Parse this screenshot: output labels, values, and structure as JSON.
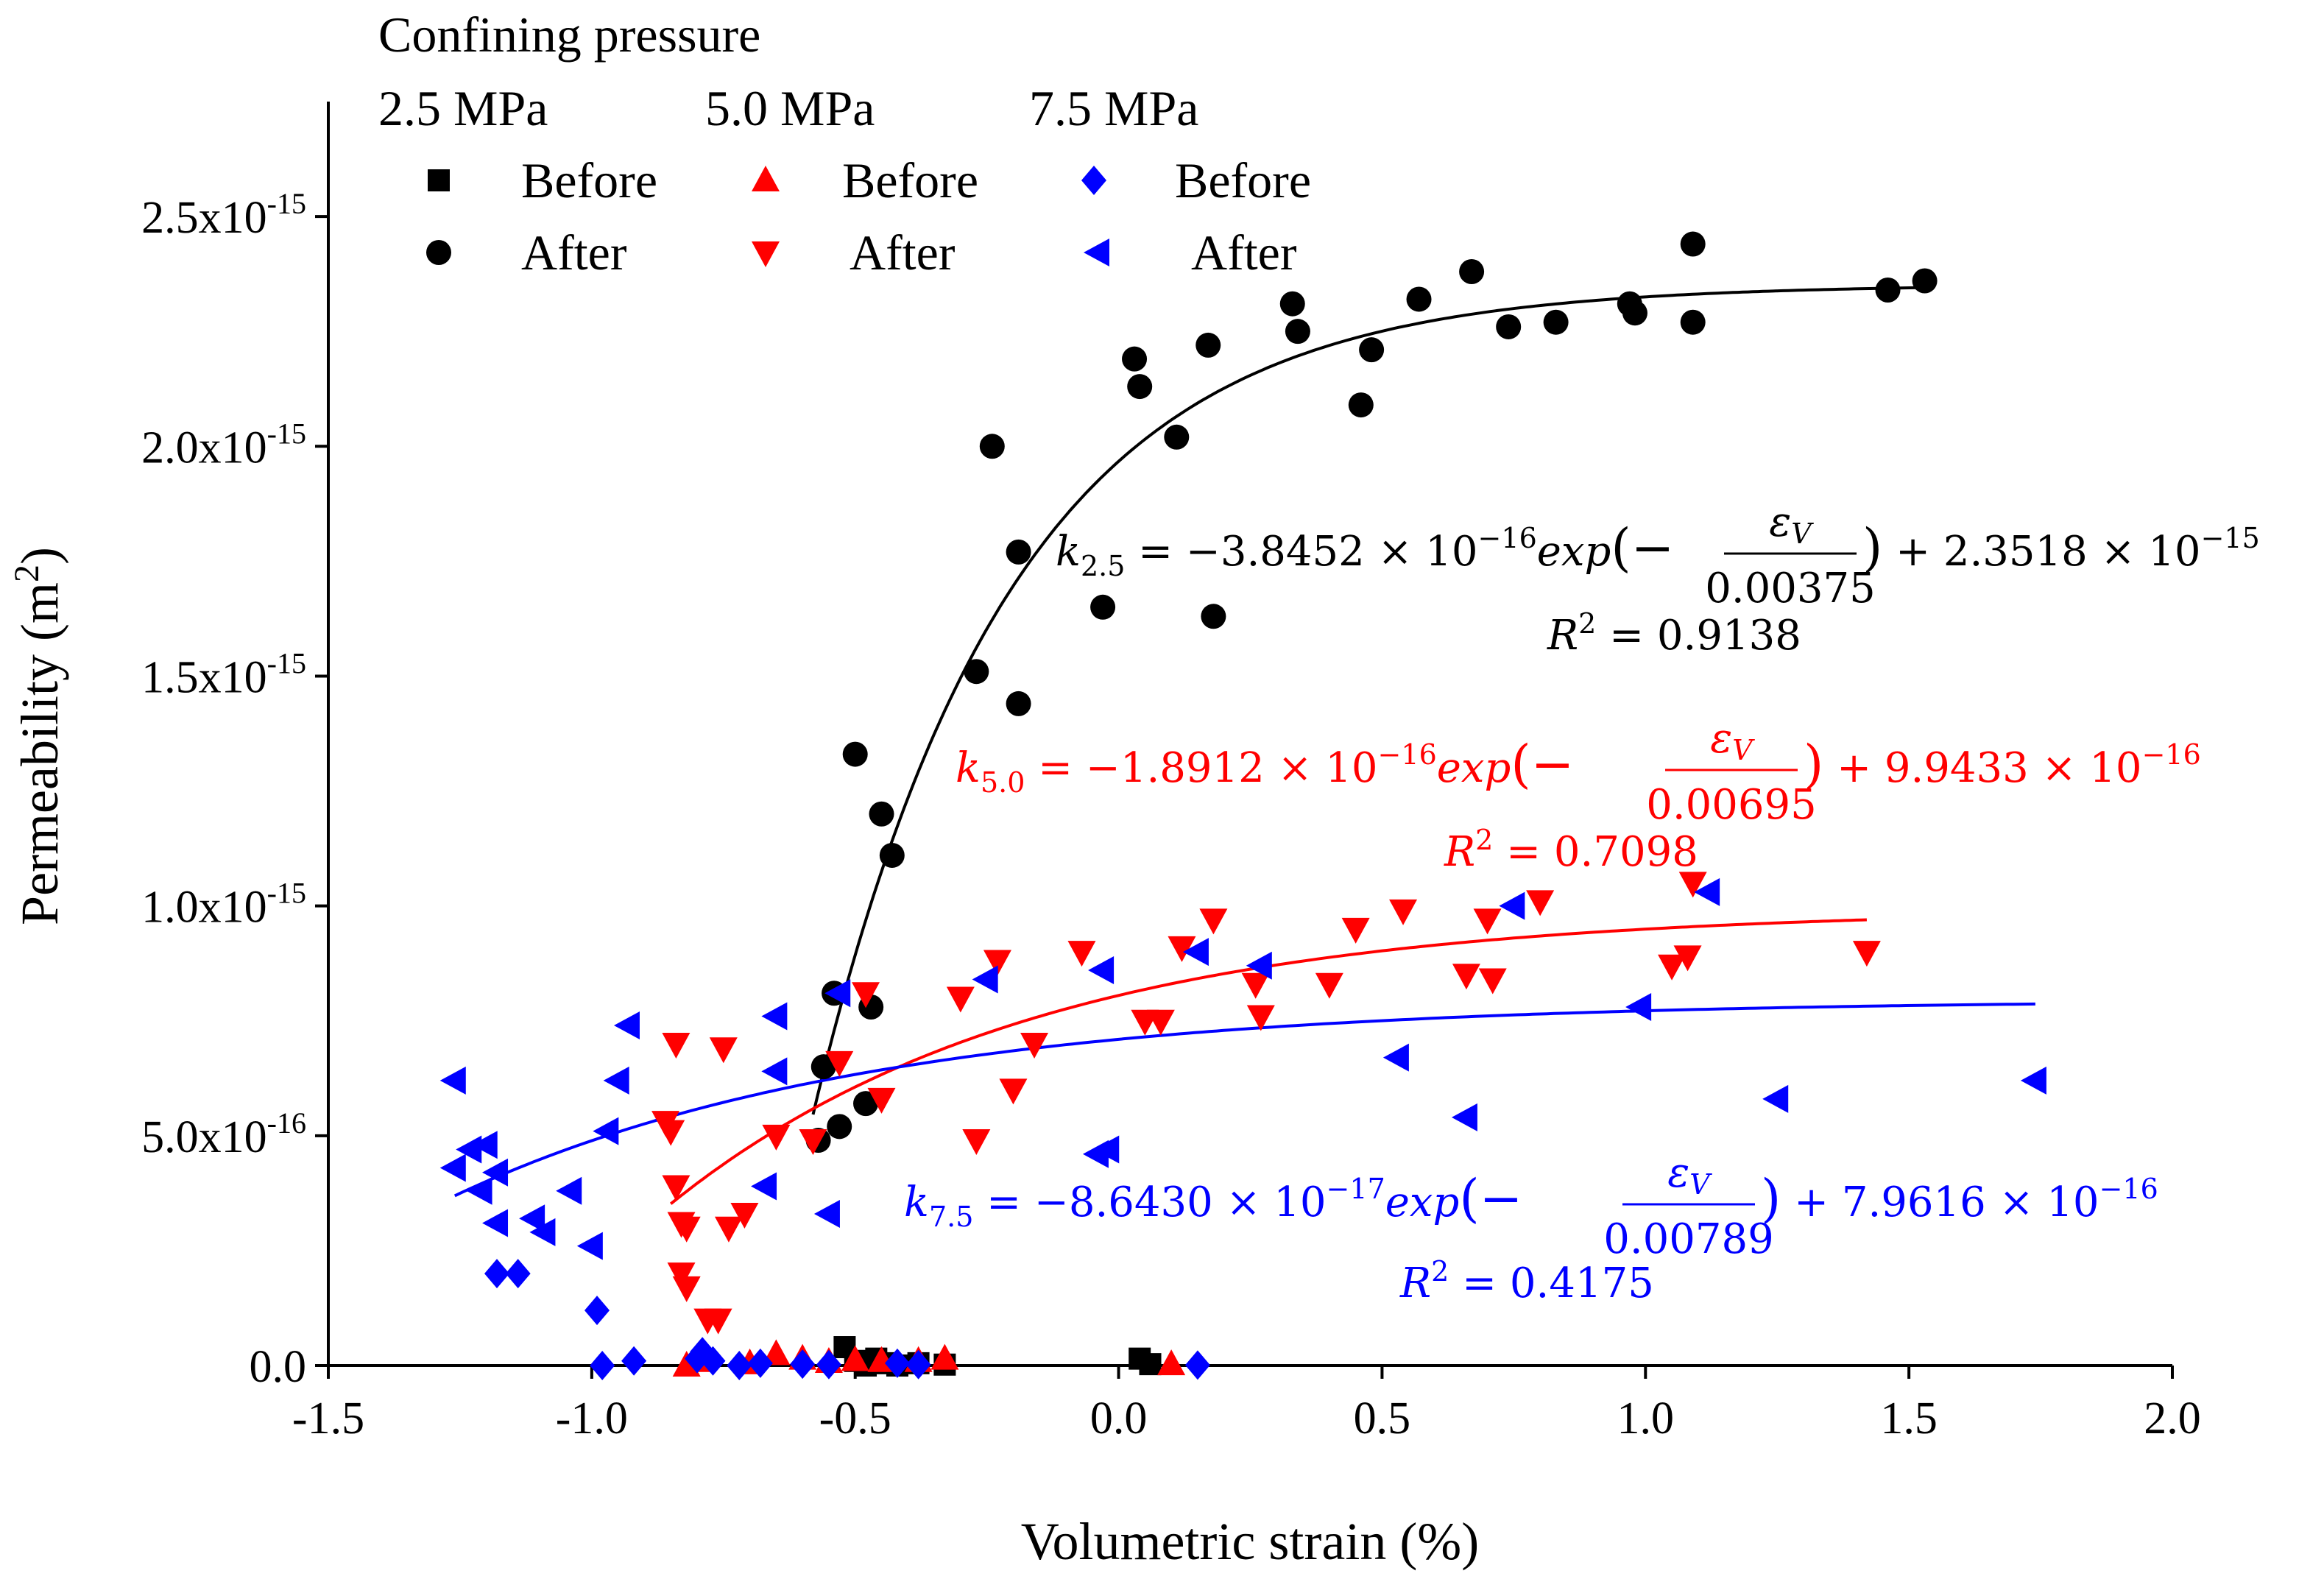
{
  "chart_data": {
    "type": "scatter",
    "title": "",
    "xlabel": "Volumetric strain (%)",
    "ylabel_main": "Permeability (m",
    "ylabel_sup": "2",
    "ylabel_close": ")",
    "xlim": [
      -1.5,
      2.0
    ],
    "ylim": [
      0,
      2.75e-15
    ],
    "grid": false,
    "x_ticks": [
      {
        "value": -1.5,
        "label": "-1.5"
      },
      {
        "value": -1.0,
        "label": "-1.0"
      },
      {
        "value": -0.5,
        "label": "-0.5"
      },
      {
        "value": 0.0,
        "label": "0.0"
      },
      {
        "value": 0.5,
        "label": "0.5"
      },
      {
        "value": 1.0,
        "label": "1.0"
      },
      {
        "value": 1.5,
        "label": "1.5"
      },
      {
        "value": 2.0,
        "label": "2.0"
      }
    ],
    "y_ticks": [
      {
        "value": 0,
        "base": "0.0",
        "exp": ""
      },
      {
        "value": 5e-16,
        "base": "5.0x10",
        "exp": "-16"
      },
      {
        "value": 1e-15,
        "base": "1.0x10",
        "exp": "-15"
      },
      {
        "value": 1.5e-15,
        "base": "1.5x10",
        "exp": "-15"
      },
      {
        "value": 2e-15,
        "base": "2.0x10",
        "exp": "-15"
      },
      {
        "value": 2.5e-15,
        "base": "2.5x10",
        "exp": "-15"
      }
    ],
    "legend": {
      "title": "Confining pressure",
      "placement": "top-left",
      "columns": [
        "2.5 MPa",
        "5.0 MPa",
        "7.5 MPa"
      ],
      "entries": [
        {
          "series": "2.5 MPa Before",
          "label": "Before"
        },
        {
          "series": "5.0 MPa Before",
          "label": "Before"
        },
        {
          "series": "7.5 MPa Before",
          "label": "Before"
        },
        {
          "series": "2.5 MPa After",
          "label": "After"
        },
        {
          "series": "5.0 MPa After",
          "label": "After"
        },
        {
          "series": "7.5 MPa After",
          "label": "After"
        }
      ]
    },
    "series": [
      {
        "name": "2.5 MPa Before",
        "marker": "square",
        "color": "#000000",
        "points": [
          [
            -0.52,
            4e-17
          ],
          [
            -0.5,
            1e-17
          ],
          [
            -0.48,
            0
          ],
          [
            -0.46,
            1.5e-17
          ],
          [
            -0.44,
            5e-18
          ],
          [
            -0.42,
            0
          ],
          [
            -0.38,
            5e-18
          ],
          [
            -0.33,
            2e-18
          ],
          [
            0.04,
            1.5e-17
          ],
          [
            0.06,
            3e-18
          ]
        ]
      },
      {
        "name": "2.5 MPa After",
        "marker": "circle",
        "color": "#000000",
        "points": [
          [
            -0.57,
            4.9e-16
          ],
          [
            -0.56,
            6.5e-16
          ],
          [
            -0.54,
            8.1e-16
          ],
          [
            -0.53,
            5.2e-16
          ],
          [
            -0.5,
            1.33e-15
          ],
          [
            -0.48,
            5.7e-16
          ],
          [
            -0.47,
            7.8e-16
          ],
          [
            -0.45,
            1.2e-15
          ],
          [
            -0.43,
            1.11e-15
          ],
          [
            -0.27,
            1.51e-15
          ],
          [
            -0.24,
            2e-15
          ],
          [
            -0.19,
            1.77e-15
          ],
          [
            -0.19,
            1.44e-15
          ],
          [
            -0.03,
            1.65e-15
          ],
          [
            0.03,
            2.19e-15
          ],
          [
            0.04,
            2.13e-15
          ],
          [
            0.11,
            2.02e-15
          ],
          [
            0.17,
            2.22e-15
          ],
          [
            0.18,
            1.63e-15
          ],
          [
            0.33,
            2.31e-15
          ],
          [
            0.34,
            2.25e-15
          ],
          [
            0.46,
            2.09e-15
          ],
          [
            0.48,
            2.21e-15
          ],
          [
            0.57,
            2.32e-15
          ],
          [
            0.67,
            2.38e-15
          ],
          [
            0.74,
            2.26e-15
          ],
          [
            0.83,
            2.27e-15
          ],
          [
            0.97,
            2.31e-15
          ],
          [
            0.98,
            2.29e-15
          ],
          [
            1.09,
            2.44e-15
          ],
          [
            1.09,
            2.27e-15
          ],
          [
            1.46,
            2.34e-15
          ],
          [
            1.53,
            2.36e-15
          ]
        ]
      },
      {
        "name": "5.0 MPa Before",
        "marker": "triangle-up",
        "color": "#ff0000",
        "points": [
          [
            -0.82,
            0
          ],
          [
            -0.79,
            1e-17
          ],
          [
            -0.7,
            5e-18
          ],
          [
            -0.65,
            2.5e-17
          ],
          [
            -0.6,
            1.5e-17
          ],
          [
            -0.55,
            8e-18
          ],
          [
            -0.5,
            1.2e-17
          ],
          [
            -0.45,
            1e-17
          ],
          [
            -0.38,
            1e-17
          ],
          [
            -0.33,
            1.5e-17
          ],
          [
            0.1,
            3e-18
          ]
        ]
      },
      {
        "name": "5.0 MPa After",
        "marker": "triangle-down",
        "color": "#ff0000",
        "points": [
          [
            -0.86,
            5.3e-16
          ],
          [
            -0.85,
            5.1e-16
          ],
          [
            -0.84,
            3.9e-16
          ],
          [
            -0.83,
            3.1e-16
          ],
          [
            -0.82,
            3e-16
          ],
          [
            -0.83,
            2e-16
          ],
          [
            -0.82,
            1.7e-16
          ],
          [
            -0.84,
            7e-16
          ],
          [
            -0.78,
            1e-16
          ],
          [
            -0.76,
            1e-16
          ],
          [
            -0.75,
            6.9e-16
          ],
          [
            -0.74,
            3e-16
          ],
          [
            -0.71,
            3.3e-16
          ],
          [
            -0.65,
            5e-16
          ],
          [
            -0.58,
            4.9e-16
          ],
          [
            -0.53,
            6.6e-16
          ],
          [
            -0.48,
            8.1e-16
          ],
          [
            -0.45,
            5.8e-16
          ],
          [
            -0.3,
            8e-16
          ],
          [
            -0.27,
            4.9e-16
          ],
          [
            -0.23,
            8.8e-16
          ],
          [
            -0.2,
            6e-16
          ],
          [
            -0.16,
            7e-16
          ],
          [
            -0.07,
            9e-16
          ],
          [
            0.05,
            7.5e-16
          ],
          [
            0.08,
            7.5e-16
          ],
          [
            0.12,
            9.1e-16
          ],
          [
            0.18,
            9.7e-16
          ],
          [
            0.26,
            8.3e-16
          ],
          [
            0.27,
            7.6e-16
          ],
          [
            0.4,
            8.3e-16
          ],
          [
            0.45,
            9.5e-16
          ],
          [
            0.54,
            9.9e-16
          ],
          [
            0.66,
            8.5e-16
          ],
          [
            0.7,
            9.7e-16
          ],
          [
            0.71,
            8.4e-16
          ],
          [
            0.8,
            1.01e-15
          ],
          [
            1.05,
            8.7e-16
          ],
          [
            1.08,
            8.9e-16
          ],
          [
            1.09,
            1.05e-15
          ],
          [
            1.42,
            9e-16
          ]
        ]
      },
      {
        "name": "7.5 MPa Before",
        "marker": "diamond",
        "color": "#0000ff",
        "points": [
          [
            -0.99,
            1.2e-16
          ],
          [
            -0.98,
            0
          ],
          [
            -0.92,
            1e-17
          ],
          [
            -0.8,
            1.5e-17
          ],
          [
            -0.79,
            3e-17
          ],
          [
            -0.77,
            1e-17
          ],
          [
            -0.72,
            0
          ],
          [
            -0.68,
            5e-18
          ],
          [
            -0.6,
            3e-18
          ],
          [
            -0.55,
            2e-18
          ],
          [
            -0.42,
            5e-18
          ],
          [
            -0.38,
            2e-18
          ],
          [
            0.15,
            1e-18
          ],
          [
            -1.18,
            2e-16
          ],
          [
            -1.14,
            2e-16
          ]
        ]
      },
      {
        "name": "7.5 MPa After",
        "marker": "triangle-left",
        "color": "#0000ff",
        "points": [
          [
            -1.26,
            6.2e-16
          ],
          [
            -1.26,
            4.3e-16
          ],
          [
            -1.23,
            4.7e-16
          ],
          [
            -1.21,
            3.8e-16
          ],
          [
            -1.2,
            4.8e-16
          ],
          [
            -1.18,
            4.2e-16
          ],
          [
            -1.18,
            3.1e-16
          ],
          [
            -1.11,
            3.2e-16
          ],
          [
            -1.09,
            2.9e-16
          ],
          [
            -1.04,
            3.8e-16
          ],
          [
            -1.0,
            2.6e-16
          ],
          [
            -0.97,
            5.1e-16
          ],
          [
            -0.95,
            6.2e-16
          ],
          [
            -0.93,
            7.4e-16
          ],
          [
            -0.67,
            3.9e-16
          ],
          [
            -0.65,
            7.6e-16
          ],
          [
            -0.65,
            6.4e-16
          ],
          [
            -0.55,
            3.3e-16
          ],
          [
            -0.53,
            8.1e-16
          ],
          [
            -0.25,
            8.4e-16
          ],
          [
            -0.04,
            4.6e-16
          ],
          [
            -0.02,
            4.7e-16
          ],
          [
            -0.03,
            8.6e-16
          ],
          [
            0.15,
            9e-16
          ],
          [
            0.27,
            8.7e-16
          ],
          [
            0.53,
            6.7e-16
          ],
          [
            0.66,
            5.4e-16
          ],
          [
            0.75,
            1e-15
          ],
          [
            0.99,
            7.8e-16
          ],
          [
            1.12,
            1.03e-15
          ],
          [
            1.25,
            5.8e-16
          ],
          [
            1.74,
            6.2e-16
          ]
        ]
      }
    ],
    "fits": [
      {
        "name": "fit 2.5 MPa",
        "color": "#000000",
        "a": -3.8452e-16,
        "t": 0.00375,
        "c": 2.3518e-15,
        "x_range": [
          -0.58,
          1.53
        ],
        "equation_lead": "k",
        "equation_sub": "2.5",
        "equation_mid": " = −3.8452 × 10",
        "equation_exp": "−16",
        "equation_fn": "exp",
        "numerator_base": "ε",
        "numerator_sub": "V",
        "denominator": "0.00375",
        "equation_tail": " + 2.3518 × 10",
        "equation_tail_exp": "−15",
        "r2_label": "R",
        "r2_exp": "2",
        "r2_value": " = 0.9138"
      },
      {
        "name": "fit 5.0 MPa",
        "color": "#ff0000",
        "a": -1.8912e-16,
        "t": 0.00695,
        "c": 9.9433e-16,
        "x_range": [
          -0.85,
          1.42
        ],
        "equation_lead": "k",
        "equation_sub": "5.0",
        "equation_mid": " = −1.8912 × 10",
        "equation_exp": "−16",
        "equation_fn": "exp",
        "numerator_base": "ε",
        "numerator_sub": "V",
        "denominator": "0.00695",
        "equation_tail": " + 9.9433 × 10",
        "equation_tail_exp": "−16",
        "r2_label": "R",
        "r2_exp": "2",
        "r2_value": " = 0.7098"
      },
      {
        "name": "fit 7.5 MPa",
        "color": "#0000ff",
        "a": -8.643e-17,
        "t": 0.00789,
        "c": 7.9616e-16,
        "x_range": [
          -1.26,
          1.74
        ],
        "equation_lead": "k",
        "equation_sub": "7.5",
        "equation_mid": " = −8.6430 × 10",
        "equation_exp": "−17",
        "equation_fn": "exp",
        "numerator_base": "ε",
        "numerator_sub": "V",
        "denominator": "0.00789",
        "equation_tail": " + 7.9616 × 10",
        "equation_tail_exp": "−16",
        "r2_label": "R",
        "r2_exp": "2",
        "r2_value": " = 0.4175"
      }
    ]
  }
}
